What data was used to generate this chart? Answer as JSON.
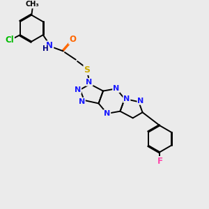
{
  "background_color": "#ebebeb",
  "atom_colors": {
    "C": "#000000",
    "N": "#1a1aff",
    "O": "#ff6600",
    "S": "#ccaa00",
    "Cl": "#00bb00",
    "F": "#ff44aa",
    "H": "#000080"
  },
  "figsize": [
    3.0,
    3.0
  ],
  "dpi": 100,
  "lw": 1.4
}
